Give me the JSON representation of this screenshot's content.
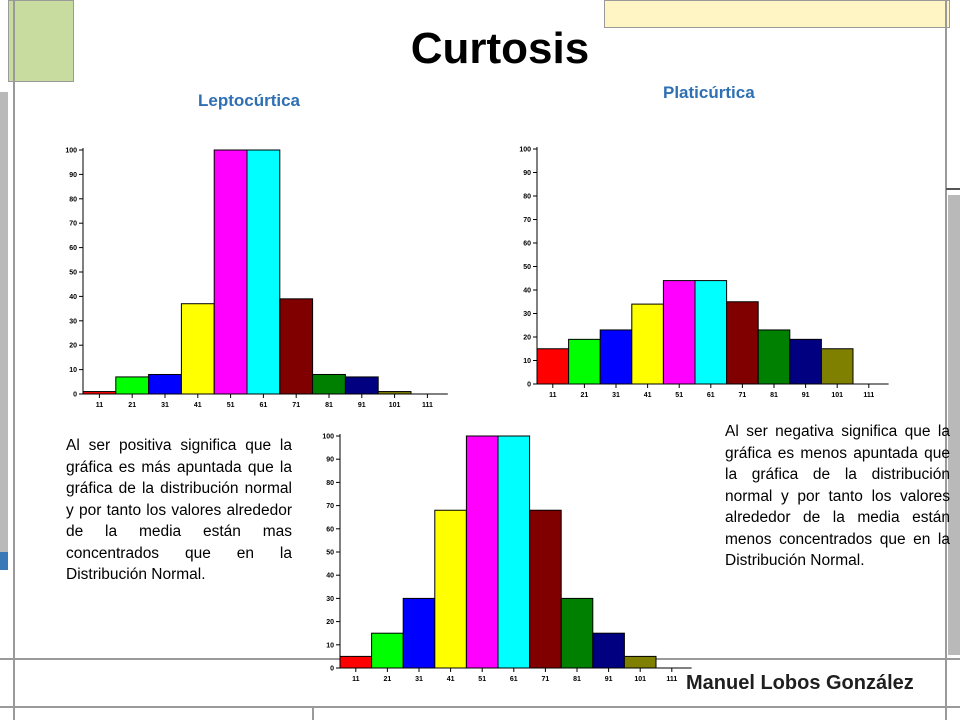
{
  "title": "Curtosis",
  "label_lepto": "Leptocúrtica",
  "label_plati": "Platicúrtica",
  "text_lepto": "Al ser positiva significa que la gráfica es más apuntada que la gráfica de la distribución normal y por tanto los valores alrededor de la media están mas concentrados que en la Distribución Normal.",
  "text_plati": "Al ser negativa significa que la gráfica es menos apuntada que la gráfica de la distribución normal y por tanto los valores alrededor de la media están menos concentrados que en la Distribución Normal.",
  "author": "Manuel Lobos González",
  "colors": {
    "subtitle": "#2f6fb4",
    "deco_green": "#c8dca0",
    "deco_tan": "#fff4c4",
    "deco_line": "#9a9a9a"
  },
  "chart_data": [
    {
      "type": "bar",
      "id": "leptocurtica",
      "categories": [
        "11",
        "21",
        "31",
        "41",
        "51",
        "61",
        "71",
        "81",
        "91",
        "101",
        "111"
      ],
      "values": [
        1,
        7,
        8,
        37,
        100,
        100,
        39,
        8,
        7,
        1,
        0
      ],
      "colors": [
        "#ff0000",
        "#00ff00",
        "#0000ff",
        "#ffff00",
        "#ff00ff",
        "#00ffff",
        "#800000",
        "#008000",
        "#000080",
        "#808000",
        "#808000"
      ],
      "ylim": [
        0,
        100
      ],
      "yticks": [
        0,
        10,
        20,
        30,
        40,
        50,
        60,
        70,
        80,
        90,
        100
      ]
    },
    {
      "type": "bar",
      "id": "platicurtica",
      "categories": [
        "11",
        "21",
        "31",
        "41",
        "51",
        "61",
        "71",
        "81",
        "91",
        "101",
        "111"
      ],
      "values": [
        15,
        19,
        23,
        34,
        44,
        44,
        35,
        23,
        19,
        15,
        0
      ],
      "colors": [
        "#ff0000",
        "#00ff00",
        "#0000ff",
        "#ffff00",
        "#ff00ff",
        "#00ffff",
        "#800000",
        "#008000",
        "#000080",
        "#808000",
        "#808000"
      ],
      "ylim": [
        0,
        100
      ],
      "yticks": [
        0,
        10,
        20,
        30,
        40,
        50,
        60,
        70,
        80,
        90,
        100
      ]
    },
    {
      "type": "bar",
      "id": "normal",
      "categories": [
        "11",
        "21",
        "31",
        "41",
        "51",
        "61",
        "71",
        "81",
        "91",
        "101",
        "111"
      ],
      "values": [
        5,
        15,
        30,
        68,
        100,
        100,
        68,
        30,
        15,
        5,
        0
      ],
      "colors": [
        "#ff0000",
        "#00ff00",
        "#0000ff",
        "#ffff00",
        "#ff00ff",
        "#00ffff",
        "#800000",
        "#008000",
        "#000080",
        "#808000",
        "#808000"
      ],
      "ylim": [
        0,
        100
      ],
      "yticks": [
        0,
        10,
        20,
        30,
        40,
        50,
        60,
        70,
        80,
        90,
        100
      ]
    }
  ]
}
